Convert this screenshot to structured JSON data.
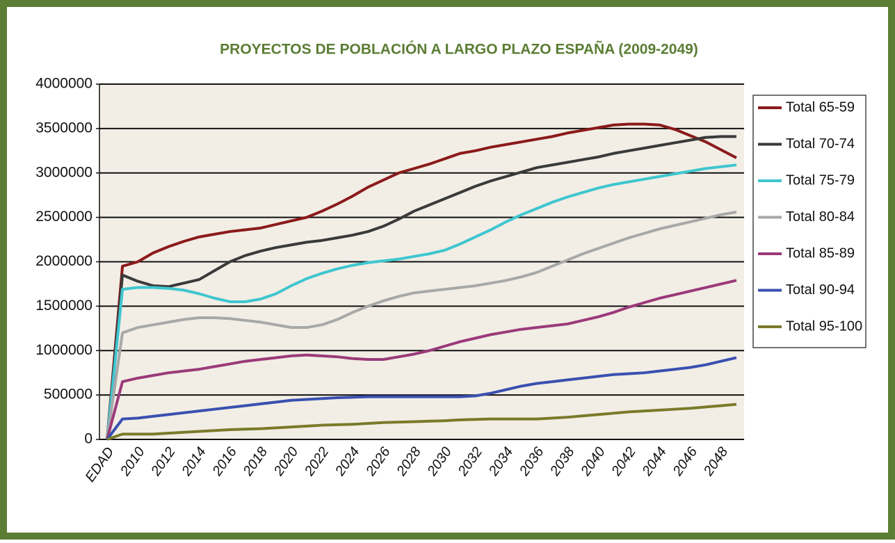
{
  "chart_data": {
    "type": "line",
    "title": "PROYECTOS DE POBLACIÓN A LARGO PLAZO ESPAÑA (2009-2049)",
    "categories": [
      "EDAD",
      null,
      "2010",
      null,
      "2012",
      null,
      "2014",
      null,
      "2016",
      null,
      "2018",
      null,
      "2020",
      null,
      "2022",
      null,
      "2024",
      null,
      "2026",
      null,
      "2028",
      null,
      "2030",
      null,
      "2032",
      null,
      "2034",
      null,
      "2036",
      null,
      "2038",
      null,
      "2040",
      null,
      "2042",
      null,
      "2044",
      null,
      "2046",
      null,
      "2048",
      null
    ],
    "series": [
      {
        "name": "Total 65-59",
        "color": "#8b1a1a",
        "values": [
          0,
          1950000,
          2000000,
          2100000,
          2170000,
          2230000,
          2280000,
          2310000,
          2340000,
          2360000,
          2380000,
          2420000,
          2460000,
          2500000,
          2570000,
          2650000,
          2740000,
          2840000,
          2920000,
          3000000,
          3050000,
          3100000,
          3160000,
          3220000,
          3250000,
          3290000,
          3320000,
          3350000,
          3380000,
          3410000,
          3450000,
          3480000,
          3510000,
          3540000,
          3550000,
          3550000,
          3540000,
          3490000,
          3420000,
          3350000,
          3260000,
          3170000
        ]
      },
      {
        "name": "Total 70-74",
        "color": "#3a3a3a",
        "values": [
          0,
          1850000,
          1780000,
          1730000,
          1720000,
          1760000,
          1800000,
          1900000,
          2000000,
          2070000,
          2120000,
          2160000,
          2190000,
          2220000,
          2240000,
          2270000,
          2300000,
          2340000,
          2400000,
          2480000,
          2570000,
          2640000,
          2710000,
          2780000,
          2850000,
          2910000,
          2960000,
          3010000,
          3060000,
          3090000,
          3120000,
          3150000,
          3180000,
          3220000,
          3250000,
          3280000,
          3310000,
          3340000,
          3370000,
          3400000,
          3410000,
          3410000
        ]
      },
      {
        "name": "Total 75-79",
        "color": "#3fc6cf",
        "values": [
          0,
          1690000,
          1710000,
          1710000,
          1700000,
          1680000,
          1640000,
          1590000,
          1550000,
          1550000,
          1580000,
          1640000,
          1730000,
          1810000,
          1870000,
          1920000,
          1960000,
          1990000,
          2010000,
          2030000,
          2060000,
          2090000,
          2130000,
          2200000,
          2280000,
          2360000,
          2450000,
          2530000,
          2600000,
          2670000,
          2730000,
          2780000,
          2830000,
          2870000,
          2900000,
          2930000,
          2960000,
          2990000,
          3020000,
          3050000,
          3070000,
          3090000
        ]
      },
      {
        "name": "Total 80-84",
        "color": "#a8a8a8",
        "values": [
          0,
          1200000,
          1260000,
          1290000,
          1320000,
          1350000,
          1370000,
          1370000,
          1360000,
          1340000,
          1320000,
          1290000,
          1260000,
          1260000,
          1290000,
          1350000,
          1430000,
          1500000,
          1560000,
          1610000,
          1650000,
          1670000,
          1690000,
          1710000,
          1730000,
          1760000,
          1790000,
          1830000,
          1880000,
          1950000,
          2020000,
          2090000,
          2150000,
          2210000,
          2270000,
          2320000,
          2370000,
          2410000,
          2450000,
          2490000,
          2530000,
          2560000
        ]
      },
      {
        "name": "Total 85-89",
        "color": "#9b3a7a",
        "values": [
          0,
          650000,
          690000,
          720000,
          750000,
          770000,
          790000,
          820000,
          850000,
          880000,
          900000,
          920000,
          940000,
          950000,
          940000,
          930000,
          910000,
          900000,
          900000,
          930000,
          960000,
          1000000,
          1050000,
          1100000,
          1140000,
          1180000,
          1210000,
          1240000,
          1260000,
          1280000,
          1300000,
          1340000,
          1380000,
          1430000,
          1490000,
          1540000,
          1590000,
          1630000,
          1670000,
          1710000,
          1750000,
          1790000
        ]
      },
      {
        "name": "Total 90-94",
        "color": "#3a50b0",
        "values": [
          0,
          230000,
          240000,
          260000,
          280000,
          300000,
          320000,
          340000,
          360000,
          380000,
          400000,
          420000,
          440000,
          450000,
          460000,
          470000,
          475000,
          480000,
          480000,
          480000,
          480000,
          480000,
          480000,
          480000,
          490000,
          520000,
          560000,
          600000,
          630000,
          650000,
          670000,
          690000,
          710000,
          730000,
          740000,
          750000,
          770000,
          790000,
          810000,
          840000,
          880000,
          920000
        ]
      },
      {
        "name": "Total 95-100",
        "color": "#7a7a2a",
        "values": [
          0,
          60000,
          60000,
          60000,
          70000,
          80000,
          90000,
          100000,
          110000,
          115000,
          120000,
          130000,
          140000,
          150000,
          160000,
          165000,
          170000,
          180000,
          190000,
          195000,
          200000,
          205000,
          210000,
          220000,
          225000,
          230000,
          230000,
          230000,
          230000,
          240000,
          250000,
          265000,
          280000,
          295000,
          310000,
          320000,
          330000,
          340000,
          350000,
          365000,
          380000,
          395000
        ]
      }
    ],
    "ylim": [
      0,
      4000000
    ],
    "yticks": [
      0,
      500000,
      1000000,
      1500000,
      2000000,
      2500000,
      3000000,
      3500000,
      4000000
    ],
    "grid": true,
    "legend": "right"
  }
}
